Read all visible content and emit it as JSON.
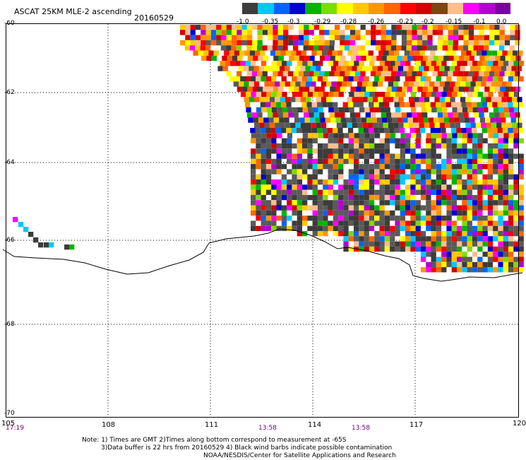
{
  "header": {
    "title": "ASCAT 25KM MLE-2 ascending",
    "date": "20160529"
  },
  "legend": {
    "colors": [
      "#3c3c3c",
      "#00c8ff",
      "#0064ff",
      "#0000d2",
      "#00b400",
      "#7ddc00",
      "#ffff00",
      "#ffc800",
      "#ff9600",
      "#ff6400",
      "#ff0000",
      "#d20000",
      "#7d4614",
      "#ffbe8c",
      "#ff00ff",
      "#b400d2",
      "#7800a0"
    ],
    "labels": [
      "-1.0",
      "-0.35",
      "-0.3",
      "-0.29",
      "-0.28",
      "-0.26",
      "-0.23",
      "-0.2",
      "-0.15",
      "-0.1",
      "0.0"
    ]
  },
  "axes": {
    "lat_labels": [
      "-60",
      "-62",
      "-64",
      "-66",
      "-68",
      "-70"
    ],
    "lon_labels": [
      "105",
      "108",
      "111",
      "114",
      "117",
      "120"
    ],
    "time_labels": [
      "17:19",
      "13:58",
      "13:58"
    ]
  },
  "notes": {
    "line1": "Note: 1) Times are GMT 2)Times along bottom correspond to measurement at -65S",
    "line2": "3)Data buffer is 22 hrs from 20160529 4) Black wind barbs indicate possible contamination",
    "line3": "NOAA/NESDIS/Center for Satellite Applications and Research"
  }
}
